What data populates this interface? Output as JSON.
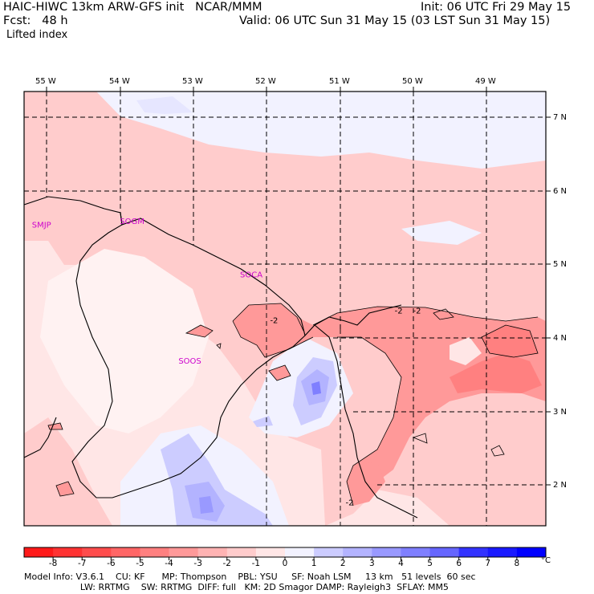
{
  "header": {
    "title": "HAIC-HIWC 13km ARW-GFS init   NCAR/MMM",
    "init": "Init: 06 UTC Fri 29 May 15",
    "fcst": "Fcst:   48 h",
    "valid": "Valid: 06 UTC Sun 31 May 15 (03 LST Sun 31 May 15)",
    "field": "Lifted index"
  },
  "map": {
    "lon_labels": [
      "55 W",
      "54 W",
      "53 W",
      "52 W",
      "51 W",
      "50 W",
      "49 W"
    ],
    "lat_labels": [
      "7 N",
      "6 N",
      "5 N",
      "4 N",
      "3 N",
      "2 N"
    ],
    "stations": [
      {
        "id": "SMJP",
        "lon": -55.2,
        "lat": 5.5
      },
      {
        "id": "SOGM",
        "lon": -54.0,
        "lat": 5.55
      },
      {
        "id": "SOCA",
        "lon": -52.36,
        "lat": 4.82
      },
      {
        "id": "SOOS",
        "lon": -53.2,
        "lat": 3.65
      }
    ],
    "contour_labels": [
      {
        "text": "-2",
        "lon": -51.95,
        "lat": 4.2
      },
      {
        "text": "-2",
        "lon": -50.25,
        "lat": 4.33
      },
      {
        "text": "-2",
        "lon": -50.0,
        "lat": 4.33
      },
      {
        "text": "-2",
        "lon": -50.92,
        "lat": 1.72
      }
    ]
  },
  "colorbar": {
    "ticks": [
      "-8",
      "-7",
      "-6",
      "-5",
      "-4",
      "-3",
      "-2",
      "-1",
      "0",
      "1",
      "2",
      "3",
      "4",
      "5",
      "6",
      "7",
      "8"
    ],
    "unit": "°C",
    "colors": [
      "#ff1a1a",
      "#ff3333",
      "#ff4d4d",
      "#ff6666",
      "#ff8080",
      "#ff9999",
      "#ffb3b3",
      "#ffcccc",
      "#ffe6e6",
      "#f2f2ff",
      "#ccccff",
      "#b3b3ff",
      "#9999ff",
      "#7f7fff",
      "#6666ff",
      "#3333ff",
      "#1a1aff",
      "#0000ff"
    ]
  },
  "footer": {
    "line1": "Model Info: V3.6.1    CU: KF      MP: Thompson    PBL: YSU     SF: Noah LSM     13 km   51 levels  60 sec",
    "line2": "                    LW: RRTMG    SW: RRTMG  DIFF: full   KM: 2D Smagor DAMP: Rayleigh3  SFLAY: MM5"
  }
}
